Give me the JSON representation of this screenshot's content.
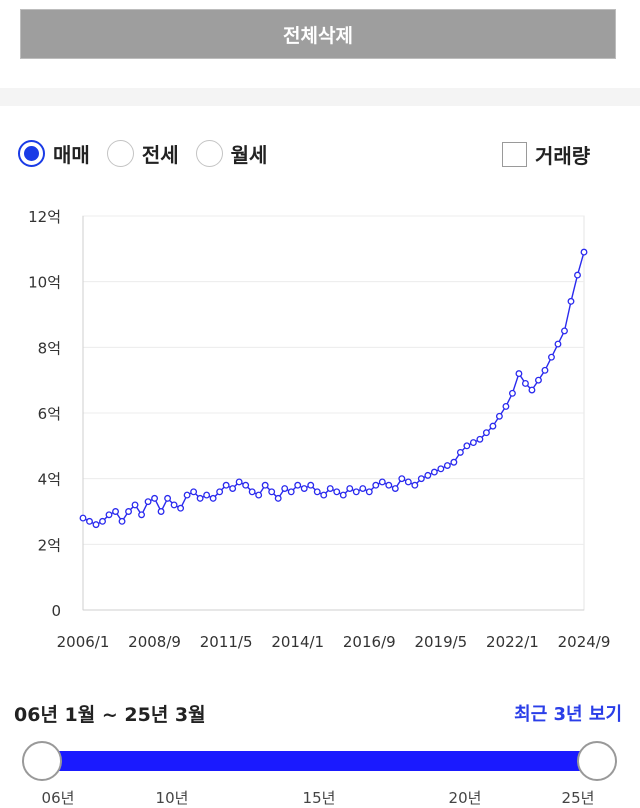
{
  "delete_button": {
    "label": "전체삭제"
  },
  "trade_types": [
    {
      "label": "매매",
      "selected": true
    },
    {
      "label": "전세",
      "selected": false
    },
    {
      "label": "월세",
      "selected": false
    }
  ],
  "volume_checkbox": {
    "label": "거래량",
    "checked": false
  },
  "range": {
    "text": "06년 1월 ~ 25년 3월",
    "recent_link": "최근 3년 보기"
  },
  "slider_labels": [
    "06년",
    "10년",
    "15년",
    "20년",
    "25년"
  ],
  "colors": {
    "accent": "#1a3be6",
    "series_blue": "#2a2aee",
    "series_red": "#ee2a2a",
    "slider": "#1a1aff"
  },
  "chart_data": {
    "type": "line",
    "x_tick_labels": [
      "2006/1",
      "2008/9",
      "2011/5",
      "2014/1",
      "2016/9",
      "2019/5",
      "2022/1",
      "2024/9"
    ],
    "y_tick_labels": [
      "0",
      "2억",
      "4억",
      "6억",
      "8억",
      "10억",
      "12억"
    ],
    "ylim": [
      0,
      12
    ],
    "grid": true,
    "series": [
      {
        "values": [
          [
            2006.0,
            2.8
          ],
          [
            2006.25,
            2.7
          ],
          [
            2006.5,
            2.6
          ],
          [
            2006.75,
            2.7
          ],
          [
            2007.0,
            2.9
          ],
          [
            2007.25,
            3.0
          ],
          [
            2007.5,
            2.7
          ],
          [
            2007.75,
            3.0
          ],
          [
            2008.0,
            3.2
          ],
          [
            2008.25,
            2.9
          ],
          [
            2008.5,
            3.3
          ],
          [
            2008.75,
            3.4
          ],
          [
            2009.0,
            3.0
          ],
          [
            2009.25,
            3.4
          ],
          [
            2009.5,
            3.2
          ],
          [
            2009.75,
            3.1
          ],
          [
            2010.0,
            3.5
          ],
          [
            2010.25,
            3.6
          ],
          [
            2010.5,
            3.4
          ],
          [
            2010.75,
            3.5
          ],
          [
            2011.0,
            3.4
          ],
          [
            2011.25,
            3.6
          ],
          [
            2011.5,
            3.8
          ],
          [
            2011.75,
            3.7
          ],
          [
            2012.0,
            3.9
          ],
          [
            2012.25,
            3.8
          ],
          [
            2012.5,
            3.6
          ],
          [
            2012.75,
            3.5
          ],
          [
            2013.0,
            3.8
          ],
          [
            2013.25,
            3.6
          ],
          [
            2013.5,
            3.4
          ],
          [
            2013.75,
            3.7
          ],
          [
            2014.0,
            3.6
          ],
          [
            2014.25,
            3.8
          ],
          [
            2014.5,
            3.7
          ],
          [
            2014.75,
            3.8
          ],
          [
            2015.0,
            3.6
          ],
          [
            2015.25,
            3.5
          ],
          [
            2015.5,
            3.7
          ],
          [
            2015.75,
            3.6
          ],
          [
            2016.0,
            3.5
          ],
          [
            2016.25,
            3.7
          ],
          [
            2016.5,
            3.6
          ],
          [
            2016.75,
            3.7
          ],
          [
            2017.0,
            3.6
          ],
          [
            2017.25,
            3.8
          ],
          [
            2017.5,
            3.9
          ],
          [
            2017.75,
            3.8
          ],
          [
            2018.0,
            3.7
          ],
          [
            2018.25,
            4.0
          ],
          [
            2018.5,
            3.9
          ],
          [
            2018.75,
            3.8
          ],
          [
            2019.0,
            4.0
          ],
          [
            2019.25,
            4.1
          ],
          [
            2019.5,
            4.2
          ],
          [
            2019.75,
            4.3
          ],
          [
            2020.0,
            4.4
          ],
          [
            2020.25,
            4.5
          ],
          [
            2020.5,
            4.8
          ],
          [
            2020.75,
            5.0
          ],
          [
            2021.0,
            5.1
          ],
          [
            2021.25,
            5.2
          ],
          [
            2021.5,
            5.4
          ],
          [
            2021.75,
            5.6
          ],
          [
            2022.0,
            5.9
          ],
          [
            2022.25,
            6.2
          ],
          [
            2022.5,
            6.6
          ],
          [
            2022.75,
            7.2
          ],
          [
            2023.0,
            6.9
          ],
          [
            2023.25,
            6.7
          ],
          [
            2023.5,
            7.0
          ],
          [
            2023.75,
            7.3
          ],
          [
            2024.0,
            7.7
          ],
          [
            2024.25,
            8.1
          ],
          [
            2024.5,
            8.5
          ],
          [
            2024.75,
            9.4
          ],
          [
            2025.0,
            10.2
          ],
          [
            2025.25,
            10.9
          ]
        ]
      }
    ]
  }
}
